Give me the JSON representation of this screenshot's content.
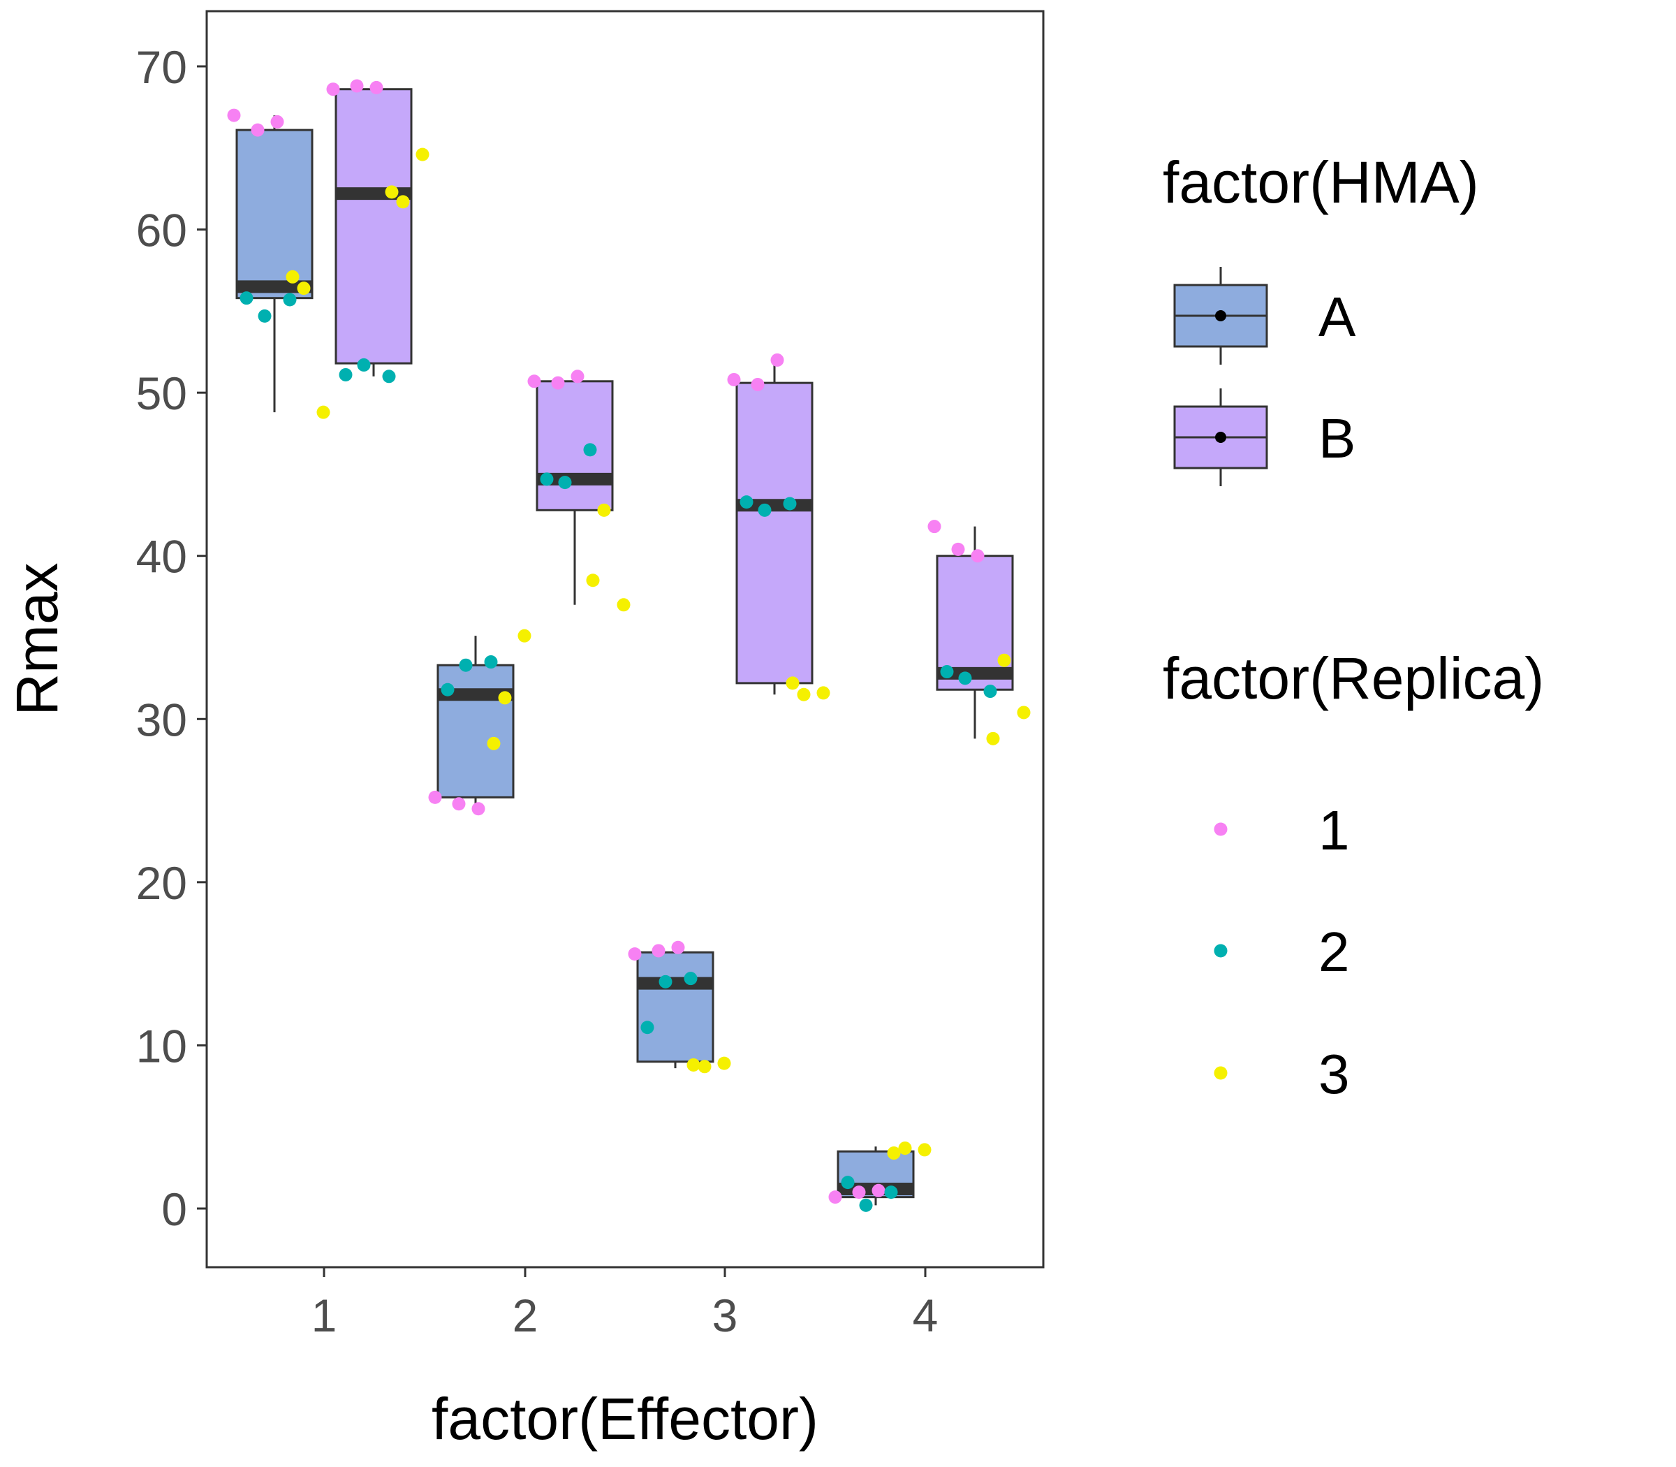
{
  "chart_data": {
    "type": "boxplot",
    "xlabel": "factor(Effector)",
    "ylabel": "Rmax",
    "ylim": [
      -3,
      74
    ],
    "yticks": [
      "0",
      "10",
      "20",
      "30",
      "40",
      "50",
      "60",
      "70"
    ],
    "categories": [
      "1",
      "2",
      "3",
      "4"
    ],
    "grid": false,
    "legend_placement": "right",
    "legends": [
      {
        "title": "factor(HMA)",
        "entries": [
          {
            "label": "A",
            "color": "#8EACDE"
          },
          {
            "label": "B",
            "color": "#C5A8FA"
          }
        ]
      },
      {
        "title": "factor(Replica)",
        "entries": [
          {
            "label": "1",
            "color": "#F781F3"
          },
          {
            "label": "2",
            "color": "#00B0B0"
          },
          {
            "label": "3",
            "color": "#F5F000"
          }
        ]
      }
    ],
    "boxes": [
      {
        "effector": "1",
        "hma": "A",
        "min": 48.8,
        "q1": 55.8,
        "median": 56.5,
        "q3": 66.1,
        "max": 67.0
      },
      {
        "effector": "1",
        "hma": "B",
        "min": 51.0,
        "q1": 51.8,
        "median": 62.2,
        "q3": 68.6,
        "max": 69.0
      },
      {
        "effector": "2",
        "hma": "A",
        "min": 24.5,
        "q1": 25.2,
        "median": 31.5,
        "q3": 33.3,
        "max": 35.1
      },
      {
        "effector": "2",
        "hma": "B",
        "min": 37.0,
        "q1": 42.8,
        "median": 44.7,
        "q3": 50.7,
        "max": 51.0
      },
      {
        "effector": "3",
        "hma": "A",
        "min": 8.6,
        "q1": 9.0,
        "median": 13.8,
        "q3": 15.7,
        "max": 16.0
      },
      {
        "effector": "3",
        "hma": "B",
        "min": 31.5,
        "q1": 32.2,
        "median": 43.1,
        "q3": 50.6,
        "max": 52.0
      },
      {
        "effector": "4",
        "hma": "A",
        "min": 0.2,
        "q1": 0.7,
        "median": 1.2,
        "q3": 3.5,
        "max": 3.8
      },
      {
        "effector": "4",
        "hma": "B",
        "min": 28.8,
        "q1": 31.8,
        "median": 32.8,
        "q3": 40.0,
        "max": 41.8
      }
    ],
    "points": [
      {
        "effector": "1",
        "hma": "A",
        "replica": "1",
        "values": [
          67.0,
          66.1,
          66.6
        ]
      },
      {
        "effector": "1",
        "hma": "A",
        "replica": "2",
        "values": [
          54.7,
          55.7,
          55.8
        ]
      },
      {
        "effector": "1",
        "hma": "A",
        "replica": "3",
        "values": [
          56.4,
          57.1,
          48.8
        ]
      },
      {
        "effector": "1",
        "hma": "B",
        "replica": "1",
        "values": [
          68.6,
          68.8,
          68.7
        ]
      },
      {
        "effector": "1",
        "hma": "B",
        "replica": "2",
        "values": [
          51.7,
          51.0,
          51.1
        ]
      },
      {
        "effector": "1",
        "hma": "B",
        "replica": "3",
        "values": [
          61.7,
          62.3,
          64.6
        ]
      },
      {
        "effector": "2",
        "hma": "A",
        "replica": "1",
        "values": [
          25.2,
          24.8,
          24.5
        ]
      },
      {
        "effector": "2",
        "hma": "A",
        "replica": "2",
        "values": [
          33.3,
          33.5,
          31.8
        ]
      },
      {
        "effector": "2",
        "hma": "A",
        "replica": "3",
        "values": [
          31.3,
          28.5,
          35.1
        ]
      },
      {
        "effector": "2",
        "hma": "B",
        "replica": "1",
        "values": [
          50.7,
          50.6,
          51.0
        ]
      },
      {
        "effector": "2",
        "hma": "B",
        "replica": "2",
        "values": [
          44.5,
          46.5,
          44.7
        ]
      },
      {
        "effector": "2",
        "hma": "B",
        "replica": "3",
        "values": [
          42.8,
          38.5,
          37.0
        ]
      },
      {
        "effector": "3",
        "hma": "A",
        "replica": "1",
        "values": [
          15.6,
          15.8,
          16.0
        ]
      },
      {
        "effector": "3",
        "hma": "A",
        "replica": "2",
        "values": [
          13.9,
          14.1,
          11.1
        ]
      },
      {
        "effector": "3",
        "hma": "A",
        "replica": "3",
        "values": [
          8.7,
          8.8,
          8.9
        ]
      },
      {
        "effector": "3",
        "hma": "B",
        "replica": "1",
        "values": [
          50.8,
          50.5,
          52.0
        ]
      },
      {
        "effector": "3",
        "hma": "B",
        "replica": "2",
        "values": [
          42.8,
          43.2,
          43.3
        ]
      },
      {
        "effector": "3",
        "hma": "B",
        "replica": "3",
        "values": [
          31.5,
          32.2,
          31.6
        ]
      },
      {
        "effector": "4",
        "hma": "A",
        "replica": "1",
        "values": [
          0.7,
          1.0,
          1.1
        ]
      },
      {
        "effector": "4",
        "hma": "A",
        "replica": "2",
        "values": [
          0.2,
          1.0,
          1.6
        ]
      },
      {
        "effector": "4",
        "hma": "A",
        "replica": "3",
        "values": [
          3.7,
          3.4,
          3.6
        ]
      },
      {
        "effector": "4",
        "hma": "B",
        "replica": "1",
        "values": [
          41.8,
          40.4,
          40.0
        ]
      },
      {
        "effector": "4",
        "hma": "B",
        "replica": "2",
        "values": [
          32.5,
          31.7,
          32.9
        ]
      },
      {
        "effector": "4",
        "hma": "B",
        "replica": "3",
        "values": [
          33.6,
          28.8,
          30.4
        ]
      }
    ]
  }
}
